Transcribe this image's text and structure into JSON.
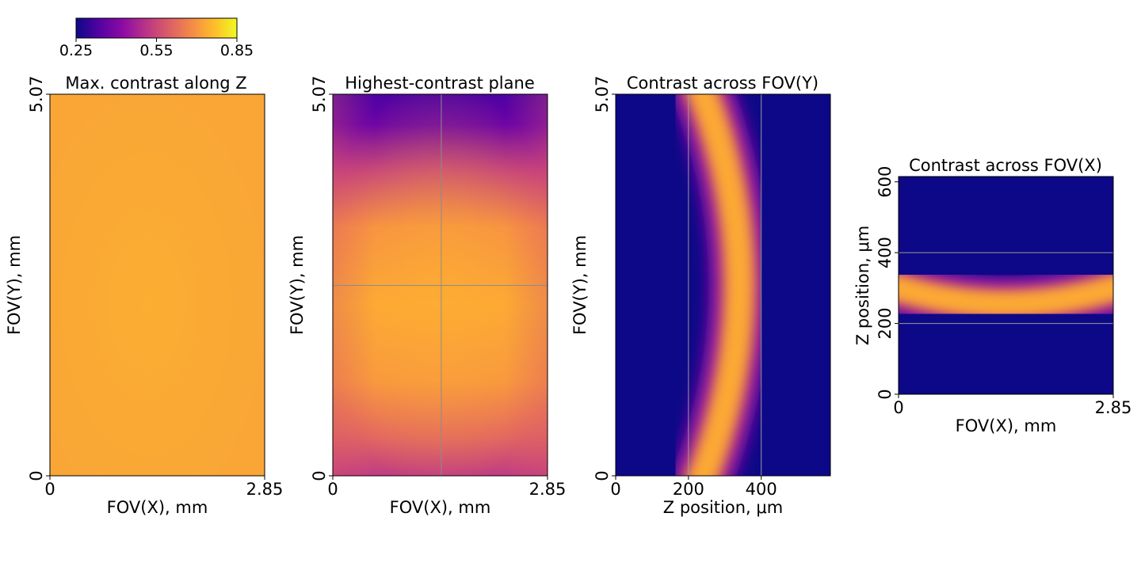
{
  "colormap": {
    "name": "plasma",
    "stops": [
      "#0d0887",
      "#5302a3",
      "#8b0aa5",
      "#b83289",
      "#db5c68",
      "#f48849",
      "#febd2a",
      "#f0f921"
    ]
  },
  "colorbar": {
    "range": [
      0.25,
      0.85
    ],
    "ticks": [
      "0.25",
      "0.55",
      "0.85"
    ]
  },
  "chart_data": [
    {
      "type": "heatmap",
      "title": "Max. contrast along Z",
      "xlabel": "FOV(X), mm",
      "ylabel": "FOV(Y), mm",
      "xlim": [
        0,
        2.85
      ],
      "ylim": [
        0,
        5.07
      ],
      "xticks": [
        "0",
        "2.85"
      ],
      "yticks": [
        "0",
        "5.07"
      ],
      "value_range": [
        0.71,
        0.74
      ],
      "grid": false
    },
    {
      "type": "heatmap",
      "title": "Highest-contrast plane",
      "xlabel": "FOV(X), mm",
      "ylabel": "FOV(Y), mm",
      "xlim": [
        0,
        2.85
      ],
      "ylim": [
        0,
        5.07
      ],
      "xticks": [
        "0",
        "2.85"
      ],
      "yticks": [
        "0",
        "5.07"
      ],
      "value_range": [
        0.3,
        0.73
      ],
      "crosshair": {
        "x": 1.44,
        "y": 2.53
      },
      "grid": false
    },
    {
      "type": "heatmap",
      "title": "Contrast across FOV(Y)",
      "xlabel": "Z position, μm",
      "ylabel": "FOV(Y), mm",
      "xlim": [
        0,
        590
      ],
      "ylim": [
        0,
        5.07
      ],
      "xticks": [
        "0",
        "200",
        "400"
      ],
      "yticks": [
        "0",
        "5.07"
      ],
      "peak_z_range": [
        240,
        340
      ],
      "reference_lines_z": [
        200,
        400
      ],
      "grid": false
    },
    {
      "type": "heatmap",
      "title": "Contrast across FOV(X)",
      "xlabel": "FOV(X), mm",
      "ylabel": "Z position, μm",
      "xlim": [
        0,
        2.85
      ],
      "ylim": [
        0,
        615
      ],
      "xticks": [
        "0",
        "2.85"
      ],
      "yticks": [
        "0",
        "200",
        "400",
        "600"
      ],
      "peak_z_range": [
        255,
        300
      ],
      "reference_lines_z": [
        200,
        400
      ],
      "grid": false
    }
  ]
}
